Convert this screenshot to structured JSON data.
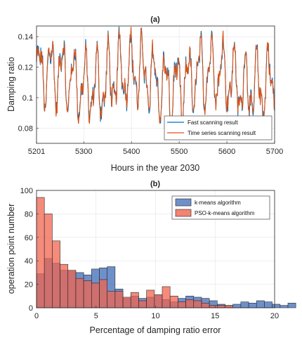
{
  "chart_data": [
    {
      "type": "line",
      "title": "(a)",
      "xlabel": "Hours in the year 2030",
      "ylabel": "Damping ratio",
      "xlim": [
        5201,
        5700
      ],
      "ylim": [
        0.07,
        0.147
      ],
      "xticks": [
        5201,
        5300,
        5400,
        5500,
        5600,
        5700
      ],
      "yticks": [
        0.08,
        0.1,
        0.12,
        0.14
      ],
      "grid": true,
      "legend_position": "bottom-right",
      "series": [
        {
          "name": "Fast scanning result",
          "color": "#0072BD"
        },
        {
          "name": "Time series scanning result",
          "color": "#D95319"
        }
      ]
    },
    {
      "type": "bar",
      "title": "(b)",
      "xlabel": "Percentage of damping ratio error",
      "ylabel": "operation point number",
      "xlim": [
        0,
        20
      ],
      "ylim": [
        0,
        100
      ],
      "xticks": [
        0,
        5,
        10,
        15,
        20
      ],
      "yticks": [
        0,
        20,
        40,
        60,
        80,
        100
      ],
      "grid": true,
      "legend_position": "top-right",
      "bin_width": 0.66,
      "series": [
        {
          "name": "k-means algorithm",
          "color": "#4A74BD",
          "values": [
            29,
            42,
            38,
            32,
            31,
            30,
            28,
            33,
            34,
            35,
            16,
            8,
            10,
            8,
            9,
            11,
            7,
            5,
            8,
            10,
            9,
            8,
            6,
            3,
            2,
            3,
            5,
            4,
            6,
            5,
            3,
            2,
            4
          ]
        },
        {
          "name": "PSO-k-means algorithm",
          "color": "#F0644F",
          "values": [
            94,
            80,
            57,
            37,
            32,
            25,
            23,
            21,
            24,
            14,
            14,
            9,
            13,
            6,
            15,
            11,
            18,
            10,
            5,
            7,
            6,
            4,
            2,
            2,
            2,
            0,
            0,
            0,
            0,
            0,
            0,
            0,
            0
          ]
        }
      ]
    }
  ]
}
